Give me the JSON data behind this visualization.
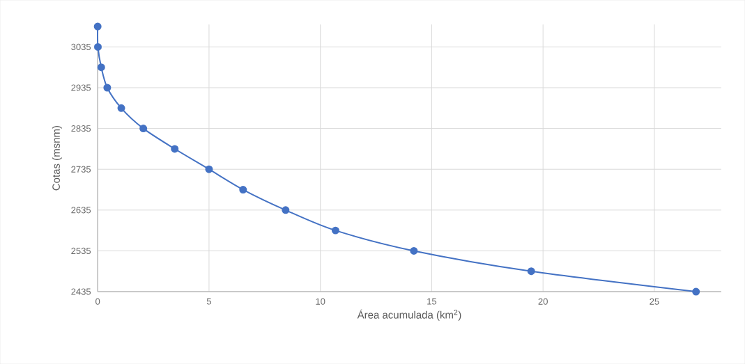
{
  "chart_data": {
    "type": "line",
    "xlabel": "Área acumulada (km$^{2}$)",
    "ylabel": "Cotas (msnm)",
    "x": [
      0,
      0.01,
      0.16,
      0.43,
      1.06,
      2.05,
      3.46,
      5.0,
      6.53,
      8.44,
      10.68,
      14.2,
      19.47,
      26.87
    ],
    "series": [
      {
        "color": "#4472c4",
        "values": [
          3085,
          3035,
          2985,
          2935,
          2885,
          2835,
          2785,
          2735,
          2685,
          2635,
          2585,
          2535,
          2485,
          2435
        ]
      }
    ],
    "xlim": [
      0,
      28
    ],
    "ylim": [
      2435,
      3090
    ],
    "xticks": [
      0,
      5,
      10,
      15,
      20,
      25
    ],
    "yticks": [
      2435,
      2535,
      2635,
      2735,
      2835,
      2935,
      3035
    ],
    "grid": true,
    "marker": "circle",
    "line_style": "solid"
  }
}
